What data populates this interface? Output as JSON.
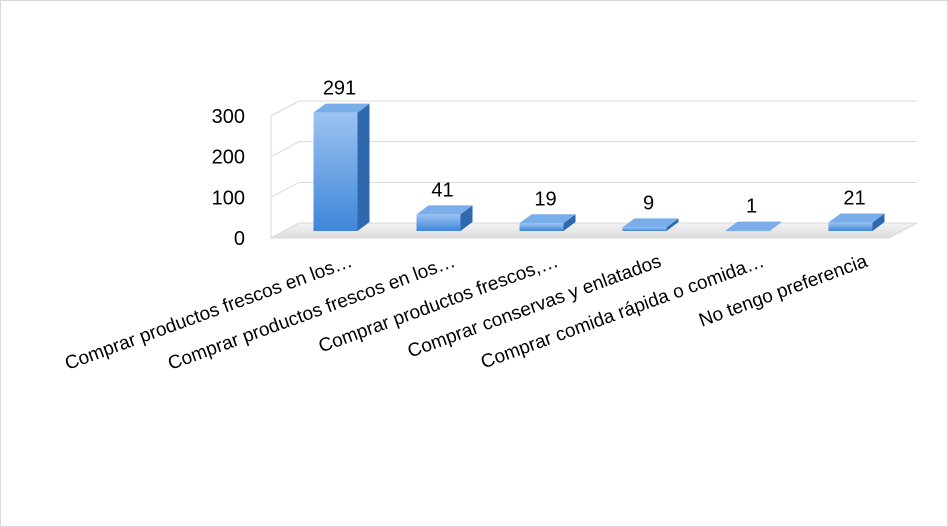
{
  "chart_data": {
    "type": "bar",
    "style": "3d-column",
    "title": "",
    "xlabel": "",
    "ylabel": "",
    "categories": [
      "Comprar productos frescos en los…",
      "Comprar productos frescos en los…",
      "Comprar productos frescos,…",
      "Comprar conservas y enlatados",
      "Comprar comida rápida o comida…",
      "No tengo preferencia"
    ],
    "values": [
      291,
      41,
      19,
      9,
      1,
      21
    ],
    "data_labels": [
      "291",
      "41",
      "19",
      "9",
      "1",
      "21"
    ],
    "ylim": [
      0,
      300
    ],
    "yticks": [
      0,
      100,
      200,
      300
    ],
    "ytick_labels": [
      "0",
      "100",
      "200",
      "300"
    ],
    "grid": true,
    "legend": "none",
    "colors": {
      "bar_front_top": "#9cc3f2",
      "bar_front_bottom": "#3f86d9",
      "bar_side": "#2f68ad",
      "bar_top": "#7aaeea",
      "gridline": "#d9d9d9",
      "floor": "#e6e6e6"
    }
  }
}
